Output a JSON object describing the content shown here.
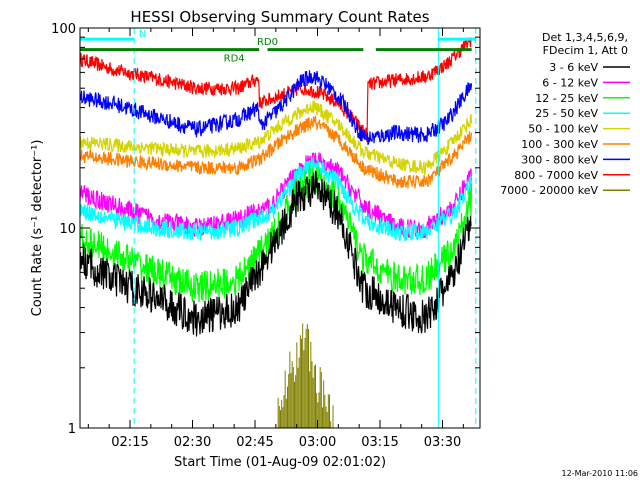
{
  "colors": {
    "background": "#ffffff",
    "frame": "#000000",
    "n_marker": "#00ffff",
    "attenuator_bar": "#008000",
    "3-6": "#000000",
    "6-12": "#ff00ff",
    "12-25": "#00ff00",
    "25-50": "#00ffff",
    "50-100": "#d4d400",
    "100-300": "#ff8000",
    "300-800": "#0000ff",
    "800-7000": "#ff0000",
    "7000-20000": "#808000"
  },
  "chart_data": {
    "type": "line",
    "title": "HESSI Observing Summary Count Rates",
    "xlabel": "Start Time (01-Aug-09 02:01:02)",
    "ylabel": "Count Rate (s⁻¹ detector⁻¹)",
    "yscale": "log",
    "xlim_minutes": [
      2.0,
      98.0
    ],
    "ylim": [
      1,
      100
    ],
    "x_ticks": [
      {
        "minute": 14,
        "label": "02:15"
      },
      {
        "minute": 29,
        "label": "02:30"
      },
      {
        "minute": 44,
        "label": "02:45"
      },
      {
        "minute": 59,
        "label": "03:00"
      },
      {
        "minute": 74,
        "label": "03:15"
      },
      {
        "minute": 89,
        "label": "03:30"
      }
    ],
    "y_ticks": [
      {
        "value": 100,
        "label": "100"
      },
      {
        "value": 10,
        "label": "10"
      },
      {
        "value": 1,
        "label": "1"
      }
    ],
    "legend": {
      "position": "right",
      "header": [
        "Det 1,3,4,5,6,9,",
        "FDecim 1, Att 0"
      ],
      "entries": [
        {
          "label": "3 - 6 keV",
          "key": "3-6"
        },
        {
          "label": "6 - 12 keV",
          "key": "6-12"
        },
        {
          "label": "12 - 25 keV",
          "key": "12-25"
        },
        {
          "label": "25 - 50 keV",
          "key": "25-50"
        },
        {
          "label": "50 - 100 keV",
          "key": "50-100"
        },
        {
          "label": "100 - 300 keV",
          "key": "100-300"
        },
        {
          "label": "300 - 800 keV",
          "key": "300-800"
        },
        {
          "label": "800 - 7000 keV",
          "key": "800-7000"
        },
        {
          "label": "7000 - 20000 keV",
          "key": "7000-20000"
        }
      ]
    },
    "annotations": [
      {
        "text": "N",
        "minute": 17,
        "value": 90
      },
      {
        "text": "RD4",
        "minute": 39,
        "value": 68
      },
      {
        "text": "RD0",
        "minute": 47,
        "value": 82
      }
    ],
    "night_markers": {
      "segments": [
        [
          2,
          15
        ],
        [
          88,
          97
        ]
      ],
      "level": 88,
      "lines": [
        {
          "minute": 2,
          "style": "solid"
        },
        {
          "minute": 15,
          "style": "dashed"
        },
        {
          "minute": 88,
          "style": "solid"
        },
        {
          "minute": 97,
          "style": "dashed"
        }
      ]
    },
    "attenuator_state_bar": {
      "segments": [
        [
          2,
          45
        ],
        [
          47,
          70
        ],
        [
          73,
          96
        ]
      ],
      "level": 78
    },
    "series": [
      {
        "key": "800-7000",
        "name": "800 - 7000 keV",
        "x": [
          2,
          10,
          20,
          30,
          40,
          44.9,
          45.1,
          50,
          55,
          59,
          64,
          68,
          70.9,
          71.1,
          78,
          85,
          90,
          96
        ],
        "y": [
          70,
          62,
          56,
          50,
          50,
          56,
          42,
          46,
          50,
          48,
          42,
          34,
          29,
          52,
          55,
          57,
          66,
          88
        ]
      },
      {
        "key": "300-800",
        "name": "300 - 800 keV",
        "x": [
          2,
          10,
          20,
          30,
          40,
          44.9,
          45.1,
          50,
          55,
          58,
          62,
          66,
          68.5,
          71,
          78,
          85,
          90,
          96
        ],
        "y": [
          45,
          42,
          36,
          31,
          35,
          40,
          32,
          40,
          54,
          58,
          50,
          40,
          31,
          28,
          30,
          29,
          34,
          52
        ]
      },
      {
        "key": "50-100",
        "name": "50 - 100 keV",
        "x": [
          2,
          10,
          20,
          30,
          40,
          45,
          52,
          58,
          64,
          70,
          78,
          85,
          90,
          96
        ],
        "y": [
          27,
          26,
          25,
          24,
          25,
          27,
          35,
          41,
          33,
          24,
          21,
          20,
          25,
          35
        ]
      },
      {
        "key": "100-300",
        "name": "100 - 300 keV",
        "x": [
          2,
          10,
          20,
          30,
          40,
          45,
          52,
          58,
          64,
          70,
          78,
          85,
          90,
          96
        ],
        "y": [
          23,
          22,
          21,
          20,
          20,
          22,
          29,
          34,
          28,
          20,
          17,
          17,
          21,
          29
        ]
      },
      {
        "key": "6-12",
        "name": "6 - 12 keV",
        "x": [
          2,
          10,
          20,
          30,
          40,
          48,
          54,
          58,
          64,
          70,
          78,
          85,
          92,
          96
        ],
        "y": [
          15,
          13,
          11,
          10,
          11,
          13,
          19,
          22,
          19,
          13,
          10,
          10,
          13,
          19
        ]
      },
      {
        "key": "25-50",
        "name": "25 - 50 keV",
        "x": [
          2,
          10,
          20,
          30,
          40,
          48,
          54,
          58,
          64,
          70,
          78,
          85,
          92,
          96
        ],
        "y": [
          12.5,
          11,
          10,
          9.5,
          10,
          12,
          18,
          21,
          17,
          11,
          9.5,
          9.5,
          12,
          17
        ]
      },
      {
        "key": "12-25",
        "name": "12 - 25 keV",
        "x": [
          2,
          10,
          20,
          30,
          40,
          48,
          54,
          58,
          64,
          70,
          78,
          85,
          92,
          96
        ],
        "y": [
          9,
          7.5,
          6,
          5,
          5.5,
          9,
          15,
          18,
          14,
          7,
          5.5,
          5.5,
          8,
          14
        ]
      },
      {
        "key": "3-6",
        "name": "3 - 6 keV",
        "x": [
          2,
          10,
          20,
          30,
          40,
          48,
          54,
          58,
          64,
          70,
          78,
          85,
          92,
          96
        ],
        "y": [
          7,
          5.5,
          4.5,
          3.5,
          4,
          8,
          14,
          16,
          12,
          5,
          4,
          3.5,
          6,
          11
        ]
      },
      {
        "key": "7000-20000",
        "name": "7000 - 20000 keV",
        "x": [
          49,
          52,
          54,
          55,
          56,
          57,
          58,
          60,
          63
        ],
        "y": [
          1,
          2.0,
          2.2,
          2.8,
          3.3,
          2.5,
          2.0,
          1.6,
          1
        ]
      }
    ]
  },
  "footer_timestamp": "12-Mar-2010 11:06"
}
